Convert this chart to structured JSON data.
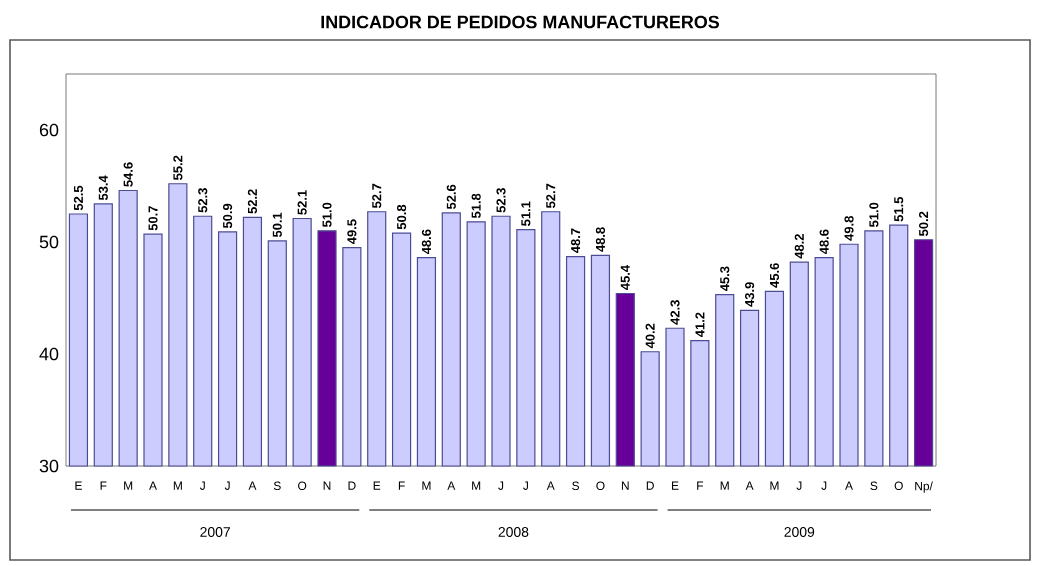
{
  "chart_data": {
    "type": "bar",
    "title": "INDICADOR DE PEDIDOS MANUFACTUREROS",
    "categories": [
      "E",
      "F",
      "M",
      "A",
      "M",
      "J",
      "J",
      "A",
      "S",
      "O",
      "N",
      "D",
      "E",
      "F",
      "M",
      "A",
      "M",
      "J",
      "J",
      "A",
      "S",
      "O",
      "N",
      "D",
      "E",
      "F",
      "M",
      "A",
      "M",
      "J",
      "J",
      "A",
      "S",
      "O",
      "Np/"
    ],
    "values": [
      52.5,
      53.4,
      54.6,
      50.7,
      55.2,
      52.3,
      50.9,
      52.2,
      50.1,
      52.1,
      51.0,
      49.5,
      52.7,
      50.8,
      48.6,
      52.6,
      51.8,
      52.3,
      51.1,
      52.7,
      48.7,
      48.8,
      45.4,
      40.2,
      42.3,
      41.2,
      45.3,
      43.9,
      45.6,
      48.2,
      48.6,
      49.8,
      51.0,
      51.5,
      50.2
    ],
    "value_labels": [
      "52.5",
      "53.4",
      "54.6",
      "50.7",
      "55.2",
      "52.3",
      "50.9",
      "52.2",
      "50.1",
      "52.1",
      "51.0",
      "49.5",
      "52.7",
      "50.8",
      "48.6",
      "52.6",
      "51.8",
      "52.3",
      "51.1",
      "52.7",
      "48.7",
      "48.8",
      "45.4",
      "40.2",
      "42.3",
      "41.2",
      "45.3",
      "43.9",
      "45.6",
      "48.2",
      "48.6",
      "49.8",
      "51.0",
      "51.5",
      "50.2"
    ],
    "colors": [
      "#ccccff",
      "#ccccff",
      "#ccccff",
      "#ccccff",
      "#ccccff",
      "#ccccff",
      "#ccccff",
      "#ccccff",
      "#ccccff",
      "#ccccff",
      "#660099",
      "#ccccff",
      "#ccccff",
      "#ccccff",
      "#ccccff",
      "#ccccff",
      "#ccccff",
      "#ccccff",
      "#ccccff",
      "#ccccff",
      "#ccccff",
      "#ccccff",
      "#660099",
      "#ccccff",
      "#ccccff",
      "#ccccff",
      "#ccccff",
      "#ccccff",
      "#ccccff",
      "#ccccff",
      "#ccccff",
      "#ccccff",
      "#ccccff",
      "#ccccff",
      "#660099"
    ],
    "ylim": [
      30,
      65
    ],
    "yticks": [
      30,
      40,
      50,
      60
    ],
    "grid": false,
    "annotations": [
      "2007",
      "2008",
      "2009"
    ]
  }
}
